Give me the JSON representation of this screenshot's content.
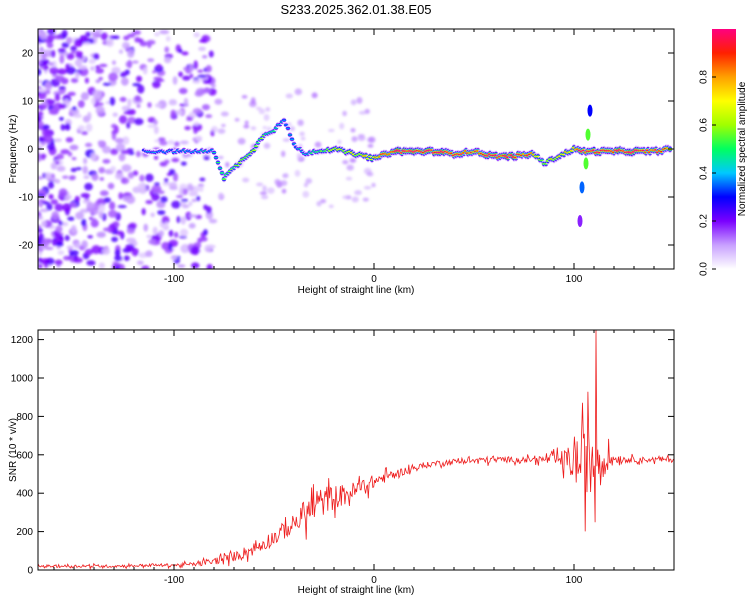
{
  "figure": {
    "title": "S233.2025.362.01.38.E05"
  },
  "colorbar": {
    "label": "Normalized spectral amplitude",
    "ticks": [
      "0.0",
      "0.2",
      "0.4",
      "0.6",
      "0.8"
    ],
    "tick_values": [
      0.0,
      0.2,
      0.4,
      0.6,
      0.8
    ],
    "range": [
      0.0,
      1.0
    ],
    "colors": [
      "#ffffff",
      "#c8a0ff",
      "#7a00ff",
      "#0000ff",
      "#00c8ff",
      "#00ff60",
      "#a0ff00",
      "#ffff00",
      "#ffa000",
      "#ff2000",
      "#ff0080"
    ]
  },
  "chart_data": [
    {
      "type": "heatmap",
      "title": "",
      "xlabel": "Height of straight line (km)",
      "ylabel": "Frequency (Hz)",
      "xlim": [
        -168,
        150
      ],
      "ylim": [
        -25,
        25
      ],
      "xticks": [
        -100,
        0,
        100
      ],
      "xtick_labels": [
        "-100",
        "0",
        "100"
      ],
      "yticks": [
        -20,
        -10,
        0,
        10,
        20
      ],
      "ytick_labels": [
        "-20",
        "-10",
        "0",
        "10",
        "20"
      ],
      "ridge": {
        "description": "main frequency trace",
        "x": [
          -115,
          -100,
          -90,
          -80,
          -75,
          -70,
          -65,
          -60,
          -55,
          -50,
          -45,
          -40,
          -35,
          -30,
          -20,
          -10,
          0,
          10,
          20,
          30,
          40,
          50,
          60,
          70,
          80,
          85,
          90,
          95,
          100,
          105,
          110,
          120,
          130,
          140,
          148
        ],
        "freq": [
          -0.5,
          -0.5,
          -0.5,
          -0.5,
          -6,
          -4,
          -2,
          0,
          3,
          4,
          6,
          1,
          -1,
          -0.5,
          0,
          -1,
          -2,
          -0.5,
          -0.5,
          -0.5,
          -1,
          -0.5,
          -1.5,
          -1.5,
          -1,
          -3,
          -2,
          -1,
          0,
          -0.5,
          -0.5,
          -0.5,
          -0.5,
          -0.5,
          0
        ],
        "amplitude": [
          0.3,
          0.3,
          0.35,
          0.35,
          0.45,
          0.5,
          0.5,
          0.5,
          0.45,
          0.4,
          0.35,
          0.3,
          0.35,
          0.45,
          0.55,
          0.6,
          0.65,
          0.9,
          0.9,
          0.9,
          0.85,
          0.8,
          0.85,
          0.9,
          0.8,
          0.5,
          0.6,
          0.65,
          0.75,
          0.85,
          0.9,
          0.9,
          0.9,
          0.85,
          0.8
        ]
      },
      "noise": {
        "description": "scattered low-amplitude speckle at negative heights",
        "x_range": [
          -168,
          -80
        ],
        "amplitude_range": [
          0.05,
          0.25
        ]
      }
    },
    {
      "type": "line",
      "title": "",
      "xlabel": "Height of straight line (km)",
      "ylabel": "SNR (10 * v/v)",
      "xlim": [
        -168,
        150
      ],
      "ylim": [
        0,
        1250
      ],
      "xticks": [
        -100,
        0,
        100
      ],
      "xtick_labels": [
        "-100",
        "0",
        "100"
      ],
      "yticks": [
        0,
        200,
        400,
        600,
        800,
        1000,
        1200
      ],
      "ytick_labels": [
        "0",
        "200",
        "400",
        "600",
        "800",
        "1000",
        "1200"
      ],
      "series": [
        {
          "name": "SNR",
          "color": "#ee1c1c",
          "x": [
            -168,
            -150,
            -130,
            -110,
            -100,
            -90,
            -80,
            -70,
            -60,
            -50,
            -40,
            -35,
            -30,
            -25,
            -20,
            -15,
            -10,
            -5,
            0,
            5,
            10,
            20,
            30,
            40,
            50,
            60,
            70,
            80,
            90,
            95,
            100,
            105,
            108,
            110,
            111,
            113,
            115,
            120,
            130,
            140,
            150
          ],
          "values": [
            20,
            20,
            20,
            25,
            25,
            30,
            45,
            70,
            110,
            170,
            240,
            290,
            330,
            360,
            380,
            390,
            410,
            440,
            460,
            480,
            500,
            530,
            555,
            565,
            570,
            575,
            575,
            575,
            575,
            570,
            560,
            560,
            570,
            580,
            590,
            580,
            575,
            580,
            575,
            575,
            575
          ],
          "spread": [
            10,
            10,
            10,
            10,
            12,
            15,
            25,
            35,
            50,
            60,
            70,
            100,
            120,
            110,
            90,
            80,
            70,
            60,
            50,
            40,
            30,
            25,
            20,
            20,
            20,
            25,
            20,
            20,
            40,
            80,
            150,
            250,
            300,
            400,
            650,
            250,
            120,
            30,
            20,
            20,
            20
          ],
          "peak_value": 1250,
          "peak_x": 111
        }
      ]
    }
  ]
}
